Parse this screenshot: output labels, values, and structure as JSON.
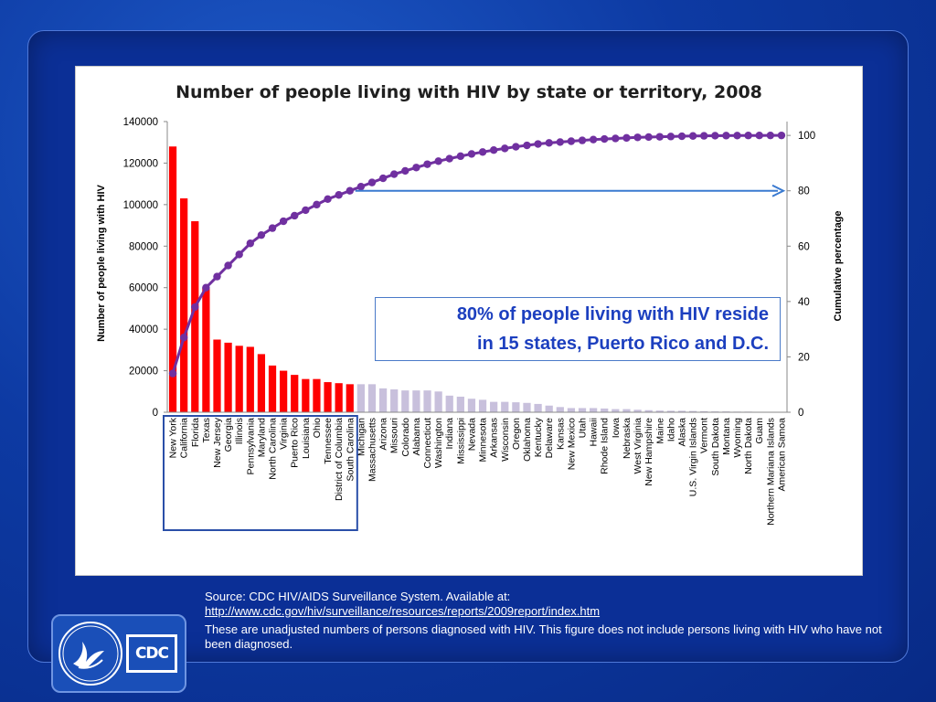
{
  "colors": {
    "highlight_bar": "#ff0000",
    "other_bar": "#c8c0dc",
    "cumulative_line": "#7030a0",
    "arrow": "#3a7ad0",
    "highlight_box": "#2a4fa8",
    "annotation_text": "#1c3fbf"
  },
  "chart_data": {
    "type": "bar",
    "title": "Number of people living with HIV by state or territory, 2008",
    "ylabel": "Number of people living with HIV",
    "y2label": "Cumulative percentage",
    "ylim": [
      0,
      140000
    ],
    "y_ticks": [
      0,
      20000,
      40000,
      60000,
      80000,
      100000,
      120000,
      140000
    ],
    "y2lim": [
      0,
      105
    ],
    "y2_ticks": [
      0,
      20,
      40,
      60,
      80,
      100
    ],
    "arrow_at_percent": 80,
    "highlight_count": 17,
    "categories": [
      "New York",
      "California",
      "Florida",
      "Texas",
      "New Jersey",
      "Georgia",
      "Illinois",
      "Pennsylvania",
      "Maryland",
      "North Carolina",
      "Virginia",
      "Puerto Rico",
      "Louisiana",
      "Ohio",
      "Tennessee",
      "District of Columbia",
      "South Carolina",
      "Michigan",
      "Massachusetts",
      "Arizona",
      "Missouri",
      "Colorado",
      "Alabama",
      "Connecticut",
      "Washington",
      "Indiana",
      "Mississippi",
      "Nevada",
      "Minnesota",
      "Arkansas",
      "Wisconsin",
      "Oregon",
      "Oklahoma",
      "Kentucky",
      "Delaware",
      "Kansas",
      "New Mexico",
      "Utah",
      "Hawaii",
      "Rhode Island",
      "Iowa",
      "Nebraska",
      "West Virginia",
      "New Hampshire",
      "Maine",
      "Idaho",
      "Alaska",
      "U.S. Virgin Islands",
      "Vermont",
      "South Dakota",
      "Montana",
      "Wyoming",
      "North Dakota",
      "Guam",
      "Northern Mariana Islands",
      "American Samoa"
    ],
    "series": [
      {
        "values": [
          128000,
          103000,
          92000,
          60000,
          35000,
          33500,
          32000,
          31500,
          28000,
          22500,
          20000,
          18000,
          16000,
          16000,
          14500,
          14000,
          13500,
          13500,
          13500,
          11500,
          11000,
          10500,
          10500,
          10500,
          10000,
          8000,
          7500,
          6500,
          6000,
          5000,
          5000,
          4800,
          4500,
          4000,
          3200,
          2500,
          2000,
          2000,
          2000,
          1800,
          1500,
          1500,
          1200,
          1000,
          800,
          700,
          700,
          600,
          500,
          400,
          400,
          300,
          300,
          200,
          100,
          50
        ]
      },
      {
        "type": "line",
        "values": [
          14,
          27,
          38,
          45,
          49,
          53,
          57,
          61,
          64,
          66.5,
          69,
          71,
          73,
          75,
          77,
          78.5,
          80,
          81.5,
          83,
          84.5,
          86,
          87.2,
          88.4,
          89.6,
          90.7,
          91.6,
          92.5,
          93.3,
          94,
          94.7,
          95.3,
          95.9,
          96.4,
          96.9,
          97.3,
          97.6,
          97.9,
          98.2,
          98.5,
          98.7,
          98.9,
          99.1,
          99.3,
          99.4,
          99.5,
          99.6,
          99.7,
          99.8,
          99.85,
          99.9,
          99.93,
          99.95,
          99.97,
          99.98,
          99.99,
          100
        ]
      }
    ],
    "annotation": [
      "80% of people living with HIV reside",
      "in 15 states, Puerto Rico and D.C."
    ]
  },
  "source": {
    "line1": "Source: CDC HIV/AIDS Surveillance System. Available at:",
    "url": "http://www.cdc.gov/hiv/surveillance/resources/reports/2009report/index.htm",
    "note": "These are  unadjusted numbers of persons diagnosed with HIV.  This figure does not include persons living with HIV who have not been diagnosed."
  },
  "logo": {
    "cdc_text": "CDC",
    "seal_text": "DEPARTMENT OF HEALTH & HUMAN SERVICES USA"
  }
}
